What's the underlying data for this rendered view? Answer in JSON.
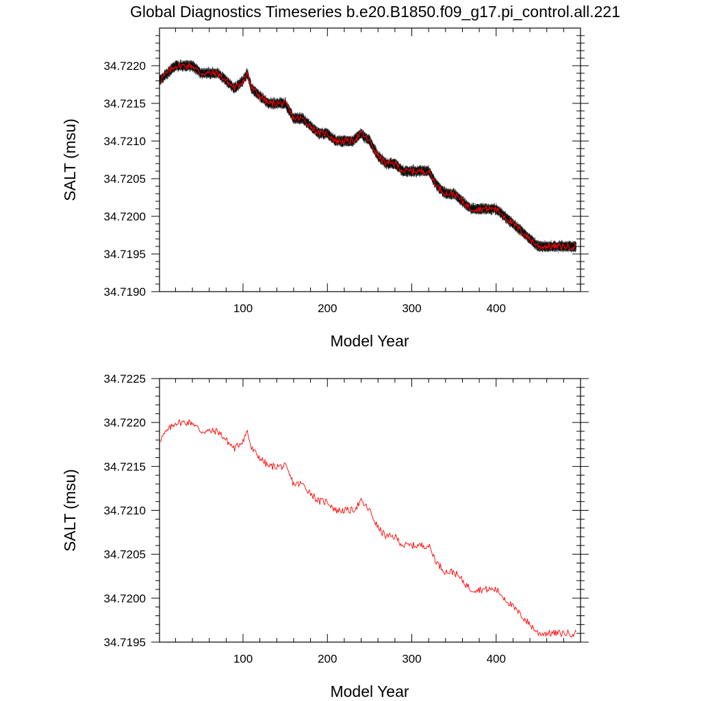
{
  "title": "Global Diagnostics Timeseries b.e20.B1850.f09_g17.pi_control.all.221",
  "colors": {
    "raw_series": "#000000",
    "raw_band": "#555555",
    "mean_series": "#ff0000"
  },
  "chart_data": [
    {
      "type": "line",
      "xlabel": "Model Year",
      "ylabel": "SALT (msu)",
      "xlim": [
        1,
        500
      ],
      "ylim": [
        34.719,
        34.7225
      ],
      "x_ticks": [
        100,
        200,
        300,
        400
      ],
      "x_tick_labels": [
        "100",
        "200",
        "300",
        "400"
      ],
      "y_ticks": [
        34.719,
        34.7195,
        34.72,
        34.7205,
        34.721,
        34.7215,
        34.722
      ],
      "y_tick_labels": [
        "34.7190",
        "34.7195",
        "34.7200",
        "34.7205",
        "34.7210",
        "34.7215",
        "34.7220"
      ],
      "grid": false,
      "series": [
        {
          "style": "monthly values (black/gray band)",
          "monthly_spread": 0.0001
        },
        {
          "style": "annual mean (red)",
          "x": [
            1,
            10,
            20,
            30,
            40,
            50,
            60,
            70,
            80,
            90,
            100,
            105,
            110,
            120,
            130,
            140,
            150,
            160,
            170,
            180,
            190,
            200,
            210,
            220,
            230,
            240,
            250,
            260,
            270,
            280,
            290,
            300,
            310,
            320,
            330,
            340,
            350,
            360,
            370,
            380,
            390,
            400,
            410,
            420,
            430,
            440,
            450,
            460,
            470,
            480,
            490,
            495
          ],
          "y": [
            34.7218,
            34.7219,
            34.722,
            34.722,
            34.722,
            34.7219,
            34.7219,
            34.7219,
            34.7218,
            34.7217,
            34.7218,
            34.7219,
            34.7217,
            34.7216,
            34.7215,
            34.7215,
            34.7215,
            34.7213,
            34.7213,
            34.7212,
            34.7211,
            34.7211,
            34.721,
            34.721,
            34.721,
            34.7211,
            34.721,
            34.7208,
            34.7207,
            34.7207,
            34.7206,
            34.7206,
            34.7206,
            34.7206,
            34.7204,
            34.7203,
            34.7203,
            34.7202,
            34.7201,
            34.7201,
            34.7201,
            34.7201,
            34.72,
            34.7199,
            34.7198,
            34.7197,
            34.7196,
            34.7196,
            34.7196,
            34.7196,
            34.7196,
            34.7196
          ]
        }
      ]
    },
    {
      "type": "line",
      "xlabel": "Model Year",
      "ylabel": "SALT (msu)",
      "xlim": [
        1,
        500
      ],
      "ylim": [
        34.7195,
        34.7225
      ],
      "x_ticks": [
        100,
        200,
        300,
        400
      ],
      "x_tick_labels": [
        "100",
        "200",
        "300",
        "400"
      ],
      "y_ticks": [
        34.7195,
        34.72,
        34.7205,
        34.721,
        34.7215,
        34.722,
        34.7225
      ],
      "y_tick_labels": [
        "34.7195",
        "34.7200",
        "34.7205",
        "34.7210",
        "34.7215",
        "34.7220",
        "34.7225"
      ],
      "grid": false,
      "series": [
        {
          "style": "annual mean (red)",
          "x": [
            1,
            10,
            20,
            30,
            40,
            50,
            60,
            70,
            80,
            90,
            100,
            105,
            110,
            120,
            130,
            140,
            150,
            160,
            170,
            180,
            190,
            200,
            210,
            220,
            230,
            240,
            250,
            260,
            270,
            280,
            290,
            300,
            310,
            320,
            330,
            340,
            350,
            360,
            370,
            380,
            390,
            400,
            410,
            420,
            430,
            440,
            450,
            460,
            470,
            480,
            490,
            495
          ],
          "y": [
            34.7218,
            34.7219,
            34.722,
            34.722,
            34.722,
            34.7219,
            34.7219,
            34.7219,
            34.7218,
            34.7217,
            34.7218,
            34.7219,
            34.7217,
            34.7216,
            34.7215,
            34.7215,
            34.7215,
            34.7213,
            34.7213,
            34.7212,
            34.7211,
            34.7211,
            34.721,
            34.721,
            34.721,
            34.7211,
            34.721,
            34.7208,
            34.7207,
            34.7207,
            34.7206,
            34.7206,
            34.7206,
            34.7206,
            34.7204,
            34.7203,
            34.7203,
            34.7202,
            34.7201,
            34.7201,
            34.7201,
            34.7201,
            34.72,
            34.7199,
            34.7198,
            34.7197,
            34.7196,
            34.7196,
            34.7196,
            34.7196,
            34.7196,
            34.7196
          ]
        }
      ]
    }
  ]
}
